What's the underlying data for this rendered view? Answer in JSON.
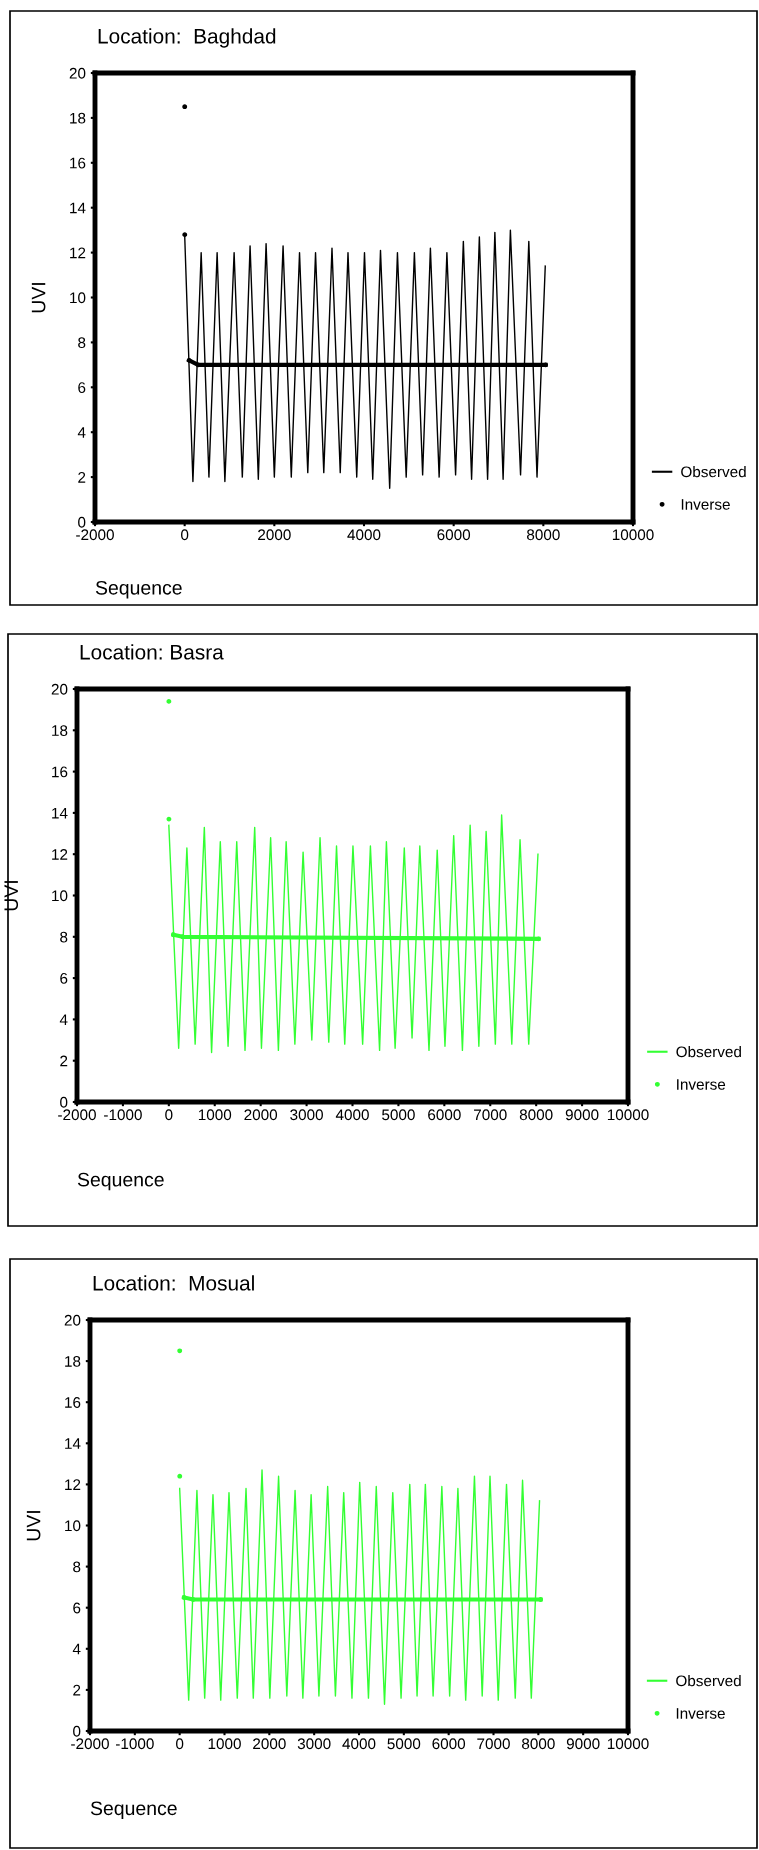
{
  "chart_data": [
    {
      "type": "line",
      "title": "Location:  Baghdad",
      "xlabel": "Sequence",
      "ylabel": "UVI",
      "xlim": [
        -2000,
        10000
      ],
      "ylim": [
        0,
        20
      ],
      "xticks": [
        -2000,
        0,
        2000,
        4000,
        6000,
        8000,
        10000
      ],
      "yticks": [
        0,
        2,
        4,
        6,
        8,
        10,
        12,
        14,
        16,
        18,
        20
      ],
      "legend": "right",
      "series": [
        {
          "name": "Observed",
          "color": "#000000",
          "x": [
            0,
            184,
            368,
            541,
            724,
            897,
            1103,
            1286,
            1459,
            1643,
            1816,
            2000,
            2195,
            2378,
            2562,
            2746,
            2919,
            3103,
            3286,
            3470,
            3643,
            3838,
            4011,
            4195,
            4368,
            4573,
            4746,
            4941,
            5124,
            5308,
            5481,
            5676,
            5849,
            6043,
            6216,
            6400,
            6573,
            6757,
            6919,
            7103,
            7265,
            7492,
            7676,
            7859,
            8043
          ],
          "values": [
            12.8,
            1.8,
            12.0,
            2.0,
            12.0,
            1.8,
            12.0,
            2.0,
            12.3,
            1.9,
            12.4,
            2.0,
            12.3,
            2.0,
            12.0,
            2.2,
            12.0,
            2.2,
            12.2,
            2.2,
            12.0,
            2.0,
            12.0,
            1.9,
            12.1,
            1.5,
            12.0,
            2.0,
            12.0,
            2.1,
            12.2,
            2.0,
            12.0,
            2.1,
            12.5,
            1.9,
            12.7,
            1.9,
            12.9,
            1.9,
            13.0,
            2.1,
            12.5,
            2.0,
            11.4
          ]
        },
        {
          "name": "Inverse",
          "color": "#000000",
          "marker": "circle",
          "x": [
            1,
            1.5,
            2,
            3,
            100,
            300,
            8050
          ],
          "values": [
            18.5,
            null,
            12.8,
            null,
            7.2,
            7.0,
            7.0
          ]
        }
      ]
    },
    {
      "type": "line",
      "title": "Location: Basra",
      "xlabel": "Sequence",
      "ylabel": "UVI",
      "xlim": [
        -2000,
        10000
      ],
      "ylim": [
        0,
        20
      ],
      "xticks": [
        -2000,
        -1000,
        0,
        1000,
        2000,
        3000,
        4000,
        5000,
        6000,
        7000,
        8000,
        9000,
        10000
      ],
      "yticks": [
        0,
        2,
        4,
        6,
        8,
        10,
        12,
        14,
        16,
        18,
        20
      ],
      "legend": "right",
      "series": [
        {
          "name": "Observed",
          "color": "#33ff33",
          "x": [
            0,
            214,
            393,
            573,
            773,
            931,
            1121,
            1290,
            1479,
            1659,
            1870,
            2017,
            2217,
            2386,
            2555,
            2745,
            2924,
            3114,
            3293,
            3483,
            3652,
            3831,
            4010,
            4221,
            4390,
            4590,
            4738,
            4928,
            5128,
            5297,
            5466,
            5666,
            5845,
            6014,
            6204,
            6394,
            6562,
            6752,
            6910,
            7111,
            7248,
            7469,
            7649,
            7838,
            8039
          ],
          "values": [
            13.4,
            2.6,
            12.3,
            2.8,
            13.3,
            2.4,
            12.6,
            2.7,
            12.6,
            2.5,
            13.3,
            2.6,
            12.8,
            2.5,
            12.6,
            2.8,
            12.1,
            3.0,
            12.8,
            2.9,
            12.4,
            2.8,
            12.4,
            2.8,
            12.4,
            2.5,
            12.6,
            2.6,
            12.3,
            3.1,
            12.4,
            2.5,
            12.2,
            2.7,
            12.9,
            2.5,
            13.4,
            2.7,
            13.1,
            2.8,
            13.9,
            2.8,
            12.7,
            2.8,
            12.0
          ]
        },
        {
          "name": "Inverse",
          "color": "#33ff33",
          "marker": "circle",
          "x": [
            1,
            1.5,
            2,
            3,
            100,
            300,
            8050
          ],
          "values": [
            19.4,
            null,
            13.7,
            null,
            8.1,
            8.0,
            7.9
          ]
        }
      ]
    },
    {
      "type": "line",
      "title": "Location:  Mosual",
      "xlabel": "Sequence",
      "ylabel": "UVI",
      "xlim": [
        -2000,
        10000
      ],
      "ylim": [
        0,
        20
      ],
      "xticks": [
        -2000,
        -1000,
        0,
        1000,
        2000,
        3000,
        4000,
        5000,
        6000,
        7000,
        8000,
        9000,
        10000
      ],
      "yticks": [
        0,
        2,
        4,
        6,
        8,
        10,
        12,
        14,
        16,
        18,
        20
      ],
      "legend": "right",
      "series": [
        {
          "name": "Observed",
          "color": "#33ff33",
          "x": [
            0,
            201,
            385,
            558,
            743,
            916,
            1100,
            1285,
            1480,
            1642,
            1837,
            2011,
            2206,
            2390,
            2574,
            2748,
            2932,
            3106,
            3301,
            3474,
            3659,
            3843,
            4016,
            4211,
            4385,
            4569,
            4753,
            4938,
            5133,
            5295,
            5480,
            5653,
            5848,
            6022,
            6206,
            6380,
            6575,
            6748,
            6922,
            7106,
            7290,
            7485,
            7648,
            7843,
            8027
          ],
          "values": [
            11.8,
            1.5,
            11.7,
            1.6,
            11.5,
            1.5,
            11.6,
            1.6,
            11.8,
            1.6,
            12.7,
            1.6,
            12.4,
            1.7,
            11.7,
            1.6,
            11.5,
            1.7,
            11.9,
            1.7,
            11.6,
            1.6,
            12.1,
            1.6,
            11.9,
            1.3,
            11.6,
            1.6,
            12.0,
            1.7,
            12.0,
            1.7,
            11.9,
            1.7,
            11.8,
            1.5,
            12.4,
            1.7,
            12.4,
            1.5,
            12.0,
            1.6,
            12.2,
            1.6,
            11.2
          ]
        },
        {
          "name": "Inverse",
          "color": "#33ff33",
          "marker": "circle",
          "x": [
            1,
            1.5,
            2,
            3,
            100,
            300,
            8050
          ],
          "values": [
            18.5,
            null,
            12.4,
            null,
            6.5,
            6.4,
            6.4
          ]
        }
      ]
    }
  ]
}
